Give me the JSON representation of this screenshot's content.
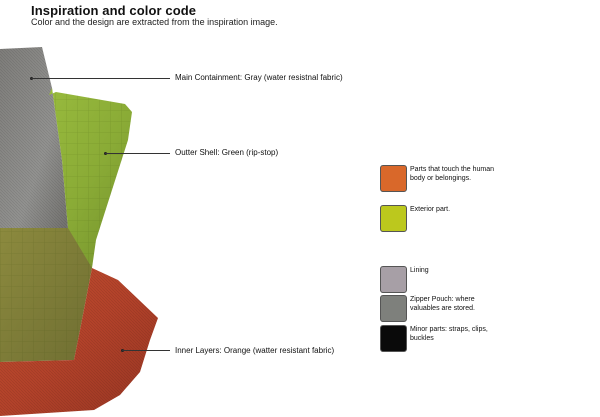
{
  "header": {
    "title": "Inspiration and color code",
    "subtitle": "Color and the design are extracted from the inspiration image."
  },
  "colors": {
    "gray_fabric": "#8a8986",
    "green_fabric": "#8fb33c",
    "orange_fabric": "#b8462a",
    "legend_orange": "#d9682a",
    "legend_green": "#bcc81d",
    "legend_lilac": "#a79fa6",
    "legend_gray": "#7e807c",
    "legend_black": "#0a0a0a"
  },
  "callouts": [
    {
      "label": "Main Containment: Gray (water resistnal fabric)"
    },
    {
      "label": "Outter Shell: Green (rip-stop)"
    },
    {
      "label": "Inner Layers: Orange (watter resistant fabric)"
    }
  ],
  "legend": [
    {
      "color_key": "legend_orange",
      "text": "Parts that touch the human body or belongings."
    },
    {
      "color_key": "legend_green",
      "text": "Exterior part."
    },
    {
      "color_key": "legend_lilac",
      "text": "Lining"
    },
    {
      "color_key": "legend_gray",
      "text": "Zipper Pouch: where valuables are stored."
    },
    {
      "color_key": "legend_black",
      "text": "Minor parts: straps, clips, buckles"
    }
  ]
}
